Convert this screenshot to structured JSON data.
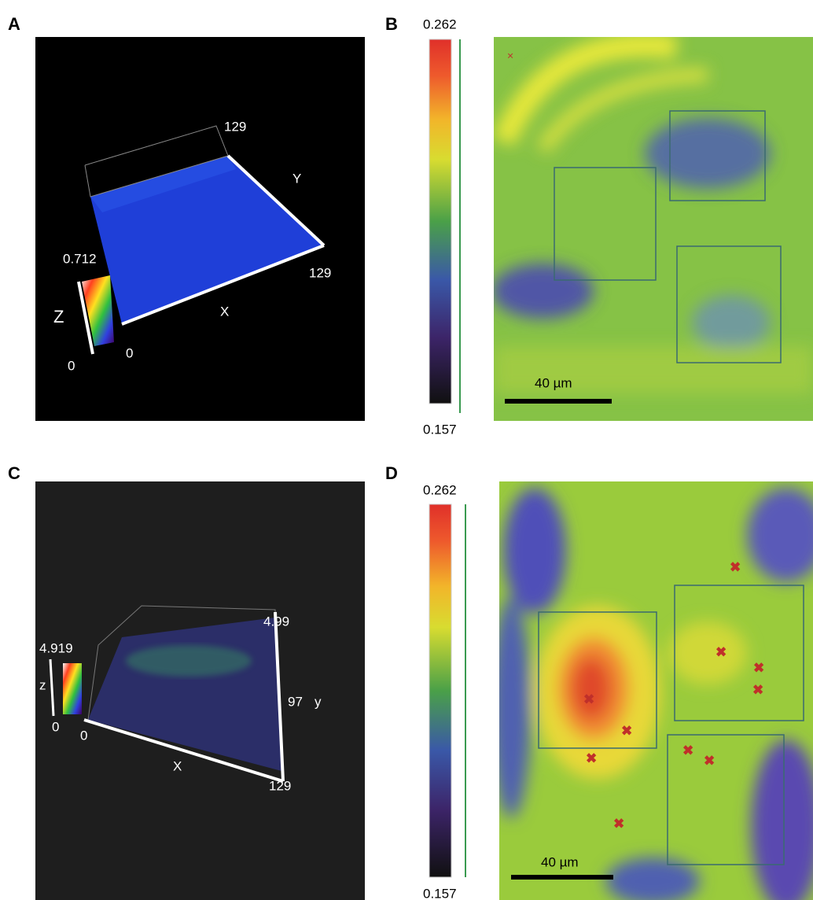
{
  "panels": [
    {
      "label": "A",
      "z_max": 0.712,
      "z_min": 0,
      "x_origin": 0,
      "x_max": 129,
      "y_max": 129,
      "x_axis": "X",
      "y_axis": "Y",
      "z_axis": "Z"
    },
    {
      "label": "B",
      "colorbar_max": 0.262,
      "colorbar_min": 0.157,
      "scale_bar": "40 µm"
    },
    {
      "label": "C",
      "z_max": 4.919,
      "z_min": 0,
      "x_origin": 0,
      "x_max": 129,
      "y_mid": 97,
      "y_top": 4.99,
      "x_axis": "X",
      "y_axis": "y",
      "z_axis": "z"
    },
    {
      "label": "D",
      "colorbar_max": 0.262,
      "colorbar_min": 0.157,
      "scale_bar": "40 µm"
    }
  ]
}
